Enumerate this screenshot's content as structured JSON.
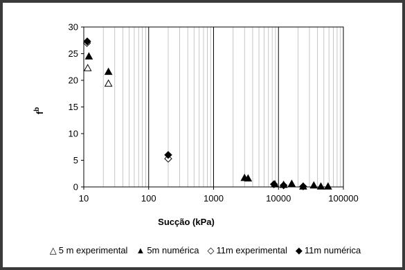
{
  "chart_data": {
    "type": "scatter",
    "title": "",
    "xlabel": "Sucção (kPa)",
    "ylabel": "f b",
    "xscale": "log",
    "xlim": [
      10,
      100000
    ],
    "ylim": [
      0,
      30
    ],
    "x_ticks": [
      "10",
      "100",
      "1000",
      "10000",
      "100000"
    ],
    "y_ticks": [
      "0",
      "5",
      "10",
      "15",
      "20",
      "25",
      "30"
    ],
    "grid": "vertical log gridlines",
    "legend_position": "bottom",
    "series": [
      {
        "name": "5 m experimental",
        "marker": "open-triangle",
        "color": "#000000",
        "x": [
          11.5,
          24
        ],
        "y": [
          22.3,
          19.4
        ]
      },
      {
        "name": "5m numérica",
        "marker": "filled-triangle",
        "color": "#000000",
        "x": [
          12,
          24,
          3000,
          3400,
          8800,
          12000,
          16000,
          24000,
          35000,
          45000,
          58000
        ],
        "y": [
          24.5,
          21.6,
          1.7,
          1.6,
          0.5,
          0.4,
          0.6,
          0.1,
          0.3,
          0.1,
          0.1
        ]
      },
      {
        "name": "11m experimental",
        "marker": "open-diamond",
        "color": "#000000",
        "x": [
          11.2,
          200
        ],
        "y": [
          27.0,
          5.3
        ]
      },
      {
        "name": "11m numérica",
        "marker": "filled-diamond",
        "color": "#000000",
        "x": [
          11.3,
          200,
          8500,
          12000,
          24000
        ],
        "y": [
          27.3,
          6.0,
          0.5,
          0.3,
          0.1
        ]
      }
    ]
  },
  "legend_symbols": [
    "△",
    "▲",
    "◇",
    "◆"
  ],
  "legend_labels": [
    "5 m experimental",
    "5m numérica",
    "11m experimental",
    "11m numérica"
  ]
}
